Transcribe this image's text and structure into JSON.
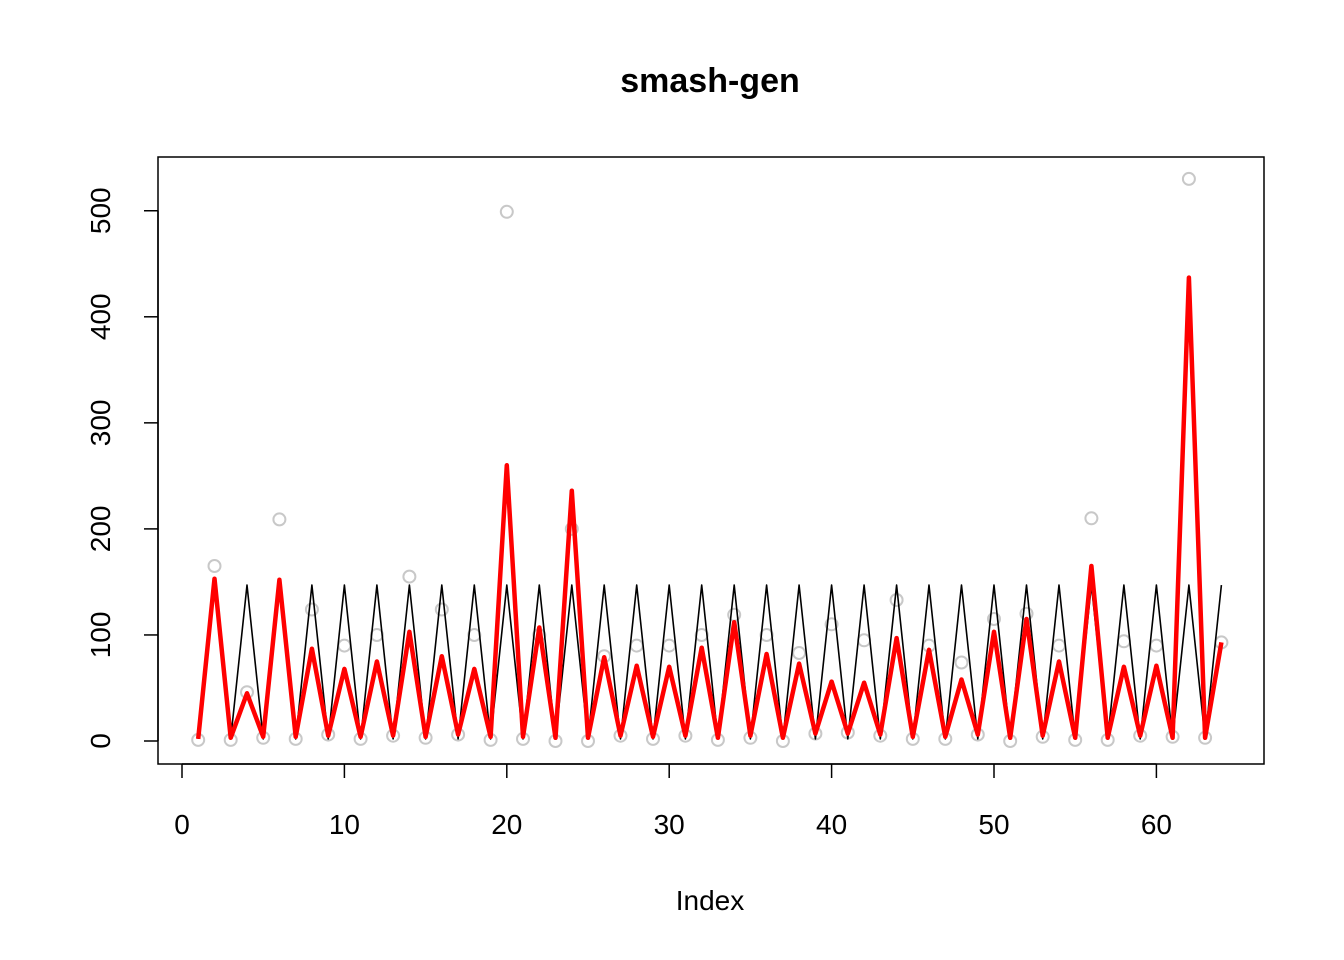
{
  "chart_data": {
    "type": "line",
    "title": "smash-gen",
    "xlabel": "Index",
    "ylabel": "",
    "xlim": [
      0,
      64
    ],
    "ylim": [
      0,
      540
    ],
    "xticks": [
      0,
      10,
      20,
      30,
      40,
      50,
      60
    ],
    "yticks": [
      0,
      100,
      200,
      300,
      400,
      500
    ],
    "grid": false,
    "legend": "none",
    "x": [
      1,
      2,
      3,
      4,
      5,
      6,
      7,
      8,
      9,
      10,
      11,
      12,
      13,
      14,
      15,
      16,
      17,
      18,
      19,
      20,
      21,
      22,
      23,
      24,
      25,
      26,
      27,
      28,
      29,
      30,
      31,
      32,
      33,
      34,
      35,
      36,
      37,
      38,
      39,
      40,
      41,
      42,
      43,
      44,
      45,
      46,
      47,
      48,
      49,
      50,
      51,
      52,
      53,
      54,
      55,
      56,
      57,
      58,
      59,
      60,
      61,
      62,
      63,
      64
    ],
    "series": [
      {
        "style": "points",
        "color": "#c8c8c8",
        "values": [
          1,
          165,
          1,
          46,
          3,
          209,
          2,
          124,
          6,
          90,
          2,
          100,
          5,
          155,
          3,
          124,
          6,
          100,
          1,
          499,
          2,
          100,
          0,
          200,
          0,
          80,
          5,
          90,
          2,
          90,
          5,
          100,
          1,
          119,
          3,
          100,
          0,
          83,
          7,
          110,
          8,
          95,
          5,
          133,
          2,
          90,
          2,
          74,
          6,
          115,
          0,
          120,
          4,
          90,
          1,
          210,
          1,
          94,
          5,
          90,
          4,
          530,
          3,
          93
        ]
      },
      {
        "style": "line",
        "color": "#000000",
        "values": [
          2,
          147,
          2,
          147,
          2,
          147,
          2,
          147,
          2,
          147,
          2,
          147,
          2,
          147,
          2,
          147,
          2,
          147,
          2,
          147,
          2,
          147,
          2,
          147,
          2,
          147,
          2,
          147,
          2,
          147,
          2,
          147,
          2,
          147,
          2,
          147,
          2,
          147,
          2,
          147,
          2,
          147,
          2,
          147,
          2,
          147,
          2,
          147,
          2,
          147,
          2,
          147,
          2,
          147,
          2,
          147,
          2,
          147,
          2,
          147,
          2,
          147,
          2,
          147
        ]
      },
      {
        "style": "line",
        "color": "#ff0000",
        "values": [
          2,
          153,
          3,
          45,
          4,
          152,
          4,
          87,
          5,
          68,
          4,
          75,
          5,
          103,
          4,
          80,
          6,
          68,
          4,
          260,
          4,
          107,
          3,
          236,
          3,
          79,
          5,
          71,
          4,
          70,
          5,
          88,
          3,
          112,
          5,
          82,
          3,
          73,
          7,
          56,
          7,
          55,
          6,
          97,
          4,
          86,
          4,
          58,
          6,
          103,
          3,
          115,
          5,
          75,
          3,
          165,
          3,
          70,
          5,
          71,
          3,
          437,
          3,
          93
        ]
      }
    ]
  }
}
